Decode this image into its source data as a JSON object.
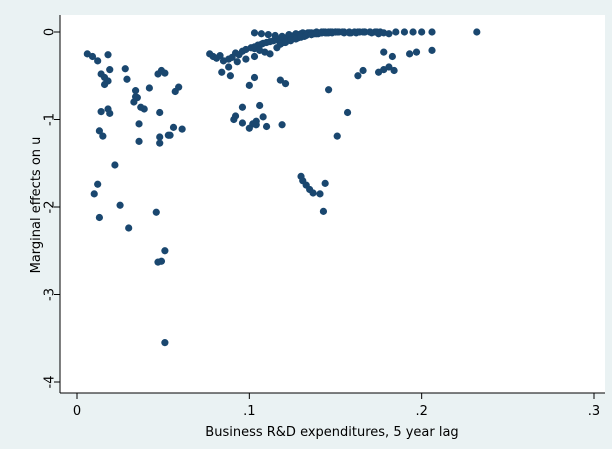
{
  "chart_data": {
    "type": "scatter",
    "title": "",
    "xlabel": "Business R&D expenditures, 5 year lag",
    "ylabel": "Marginal effects on u",
    "xlim": [
      0,
      0.3
    ],
    "ylim": [
      -4,
      0
    ],
    "xticks": [
      0,
      0.1,
      0.2,
      0.3
    ],
    "xtick_labels": [
      "0",
      ".1",
      ".2",
      ".3"
    ],
    "yticks": [
      0,
      -1,
      -2,
      -3,
      -4
    ],
    "ytick_labels": [
      "0",
      "-1",
      "-2",
      "-3",
      "-4"
    ],
    "grid": false,
    "marker_color": "#1a476f",
    "x": [
      0.006,
      0.009,
      0.012,
      0.014,
      0.016,
      0.018,
      0.019,
      0.018,
      0.016,
      0.018,
      0.019,
      0.014,
      0.013,
      0.015,
      0.01,
      0.012,
      0.013,
      0.022,
      0.028,
      0.029,
      0.025,
      0.03,
      0.033,
      0.034,
      0.035,
      0.037,
      0.039,
      0.036,
      0.034,
      0.036,
      0.042,
      0.046,
      0.047,
      0.049,
      0.051,
      0.053,
      0.054,
      0.048,
      0.057,
      0.059,
      0.048,
      0.056,
      0.048,
      0.061,
      0.047,
      0.051,
      0.049,
      0.051,
      0.077,
      0.079,
      0.081,
      0.083,
      0.085,
      0.088,
      0.09,
      0.092,
      0.094,
      0.096,
      0.098,
      0.101,
      0.103,
      0.105,
      0.107,
      0.108,
      0.11,
      0.112,
      0.114,
      0.116,
      0.118,
      0.12,
      0.122,
      0.124,
      0.126,
      0.128,
      0.13,
      0.132,
      0.134,
      0.136,
      0.138,
      0.14,
      0.142,
      0.144,
      0.146,
      0.148,
      0.15,
      0.152,
      0.155,
      0.158,
      0.161,
      0.164,
      0.167,
      0.17,
      0.173,
      0.176,
      0.103,
      0.107,
      0.111,
      0.115,
      0.119,
      0.123,
      0.127,
      0.131,
      0.135,
      0.139,
      0.143,
      0.147,
      0.151,
      0.155,
      0.159,
      0.163,
      0.167,
      0.171,
      0.175,
      0.178,
      0.181,
      0.185,
      0.19,
      0.195,
      0.2,
      0.206,
      0.232,
      0.12,
      0.125,
      0.13,
      0.134,
      0.138,
      0.142,
      0.146,
      0.15,
      0.154,
      0.158,
      0.162,
      0.166,
      0.17,
      0.174,
      0.103,
      0.106,
      0.109,
      0.112,
      0.116,
      0.12,
      0.124,
      0.128,
      0.132,
      0.136,
      0.14,
      0.144,
      0.148,
      0.118,
      0.121,
      0.124,
      0.127,
      0.13,
      0.133,
      0.136,
      0.139,
      0.142,
      0.145,
      0.088,
      0.093,
      0.098,
      0.103,
      0.084,
      0.089,
      0.096,
      0.092,
      0.102,
      0.104,
      0.106,
      0.108,
      0.1,
      0.103,
      0.118,
      0.121,
      0.091,
      0.096,
      0.1,
      0.104,
      0.11,
      0.119,
      0.13,
      0.131,
      0.133,
      0.135,
      0.137,
      0.141,
      0.144,
      0.143,
      0.146,
      0.151,
      0.157,
      0.163,
      0.166,
      0.175,
      0.178,
      0.181,
      0.184,
      0.193,
      0.197,
      0.206,
      0.183,
      0.178
    ],
    "y": [
      -0.25,
      -0.28,
      -0.33,
      -0.48,
      -0.52,
      -0.26,
      -0.43,
      -0.56,
      -0.6,
      -0.88,
      -0.93,
      -0.91,
      -1.13,
      -1.19,
      -1.85,
      -1.74,
      -2.12,
      -1.52,
      -0.42,
      -0.54,
      -1.98,
      -2.24,
      -0.8,
      -0.67,
      -0.75,
      -0.86,
      -0.88,
      -1.05,
      -0.74,
      -1.25,
      -0.64,
      -2.06,
      -0.48,
      -0.44,
      -0.47,
      -1.18,
      -1.18,
      -1.2,
      -0.68,
      -0.63,
      -0.92,
      -1.09,
      -1.27,
      -1.11,
      -2.63,
      -2.5,
      -2.62,
      -3.55,
      -0.25,
      -0.28,
      -0.3,
      -0.27,
      -0.33,
      -0.31,
      -0.29,
      -0.24,
      -0.26,
      -0.22,
      -0.2,
      -0.18,
      -0.17,
      -0.15,
      -0.14,
      -0.13,
      -0.12,
      -0.11,
      -0.1,
      -0.09,
      -0.08,
      -0.07,
      -0.06,
      -0.05,
      -0.04,
      -0.03,
      -0.02,
      -0.02,
      -0.01,
      -0.01,
      -0.01,
      -0.01,
      0.0,
      0.0,
      0.0,
      0.0,
      0.0,
      0.0,
      0.0,
      0.0,
      0.0,
      0.0,
      0.0,
      0.0,
      0.0,
      0.0,
      -0.01,
      -0.02,
      -0.03,
      -0.04,
      -0.05,
      -0.03,
      -0.02,
      -0.01,
      -0.01,
      0.0,
      0.0,
      0.0,
      0.0,
      -0.01,
      -0.01,
      0.0,
      0.0,
      -0.01,
      -0.02,
      -0.01,
      -0.02,
      0.0,
      0.0,
      0.0,
      0.0,
      0.0,
      0.0,
      -0.08,
      -0.06,
      -0.04,
      -0.02,
      -0.02,
      -0.01,
      -0.01,
      0.0,
      0.0,
      -0.01,
      -0.01,
      0.0,
      0.0,
      0.0,
      -0.19,
      -0.21,
      -0.23,
      -0.25,
      -0.18,
      -0.12,
      -0.09,
      -0.07,
      -0.05,
      -0.03,
      -0.02,
      -0.01,
      -0.01,
      -0.14,
      -0.12,
      -0.1,
      -0.08,
      -0.06,
      -0.04,
      -0.03,
      -0.02,
      -0.01,
      -0.01,
      -0.4,
      -0.34,
      -0.31,
      -0.28,
      -0.46,
      -0.5,
      -0.86,
      -0.96,
      -1.05,
      -1.02,
      -0.84,
      -0.97,
      -0.61,
      -0.52,
      -0.55,
      -0.59,
      -1.0,
      -1.04,
      -1.1,
      -1.06,
      -1.08,
      -1.06,
      -1.65,
      -1.7,
      -1.75,
      -1.8,
      -1.84,
      -1.85,
      -1.73,
      -2.05,
      -0.66,
      -1.19,
      -0.92,
      -0.5,
      -0.44,
      -0.46,
      -0.43,
      -0.4,
      -0.44,
      -0.25,
      -0.23,
      -0.21,
      -0.28,
      -0.23
    ]
  }
}
